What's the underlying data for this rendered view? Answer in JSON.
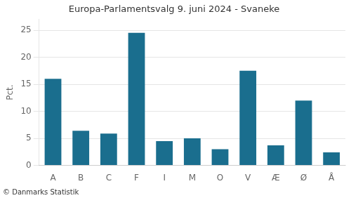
{
  "chart_data": {
    "type": "bar",
    "title": "Europa-Parlamentsvalg 9. juni 2024 - Svaneke",
    "categories": [
      "A",
      "B",
      "C",
      "F",
      "I",
      "M",
      "O",
      "V",
      "Æ",
      "Ø",
      "Å"
    ],
    "values": [
      16.0,
      6.4,
      5.9,
      24.5,
      4.5,
      5.0,
      3.0,
      17.5,
      3.7,
      12.0,
      2.4
    ],
    "color": "#1a6e8e",
    "ylabel": "Pct.",
    "ylim": [
      0,
      27
    ],
    "yticks": [
      0,
      5,
      10,
      15,
      20,
      25
    ],
    "grid": true,
    "footer": "© Danmarks Statistik"
  }
}
